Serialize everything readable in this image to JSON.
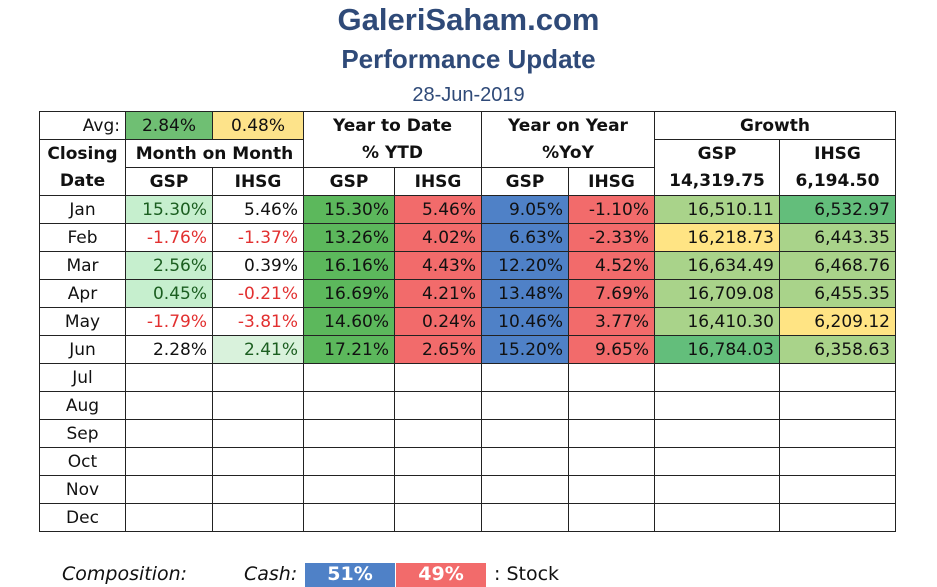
{
  "header": {
    "site": "GaleriSaham.com",
    "subtitle": "Performance Update",
    "date": "28-Jun-2019"
  },
  "avg": {
    "label": "Avg:",
    "gsp": "2.84%",
    "ihsg": "0.48%"
  },
  "groups": {
    "ytd": "Year to Date",
    "yoy": "Year on Year",
    "growth": "Growth"
  },
  "labels": {
    "closing": "Closing",
    "date": "Date",
    "mom": "Month on Month",
    "ytd_pct": "% YTD",
    "yoy_pct": "%YoY",
    "gsp": "GSP",
    "ihsg": "IHSG"
  },
  "base": {
    "gsp": "14,319.75",
    "ihsg": "6,194.50"
  },
  "rows": [
    {
      "month": "Jan",
      "mom_gsp": "15.30%",
      "mom_ihsg": "5.46%",
      "ytd_gsp": "15.30%",
      "ytd_ihsg": "5.46%",
      "yoy_gsp": "9.05%",
      "yoy_ihsg": "-1.10%",
      "gr_gsp": "16,510.11",
      "gr_ihsg": "6,532.97"
    },
    {
      "month": "Feb",
      "mom_gsp": "-1.76%",
      "mom_ihsg": "-1.37%",
      "ytd_gsp": "13.26%",
      "ytd_ihsg": "4.02%",
      "yoy_gsp": "6.63%",
      "yoy_ihsg": "-2.33%",
      "gr_gsp": "16,218.73",
      "gr_ihsg": "6,443.35"
    },
    {
      "month": "Mar",
      "mom_gsp": "2.56%",
      "mom_ihsg": "0.39%",
      "ytd_gsp": "16.16%",
      "ytd_ihsg": "4.43%",
      "yoy_gsp": "12.20%",
      "yoy_ihsg": "4.52%",
      "gr_gsp": "16,634.49",
      "gr_ihsg": "6,468.76"
    },
    {
      "month": "Apr",
      "mom_gsp": "0.45%",
      "mom_ihsg": "-0.21%",
      "ytd_gsp": "16.69%",
      "ytd_ihsg": "4.21%",
      "yoy_gsp": "13.48%",
      "yoy_ihsg": "7.69%",
      "gr_gsp": "16,709.08",
      "gr_ihsg": "6,455.35"
    },
    {
      "month": "May",
      "mom_gsp": "-1.79%",
      "mom_ihsg": "-3.81%",
      "ytd_gsp": "14.60%",
      "ytd_ihsg": "0.24%",
      "yoy_gsp": "10.46%",
      "yoy_ihsg": "3.77%",
      "gr_gsp": "16,410.30",
      "gr_ihsg": "6,209.12"
    },
    {
      "month": "Jun",
      "mom_gsp": "2.28%",
      "mom_ihsg": "2.41%",
      "ytd_gsp": "17.21%",
      "ytd_ihsg": "2.65%",
      "yoy_gsp": "15.20%",
      "yoy_ihsg": "9.65%",
      "gr_gsp": "16,784.03",
      "gr_ihsg": "6,358.63"
    },
    {
      "month": "Jul"
    },
    {
      "month": "Aug"
    },
    {
      "month": "Sep"
    },
    {
      "month": "Oct"
    },
    {
      "month": "Nov"
    },
    {
      "month": "Dec"
    }
  ],
  "colors": {
    "avg_gsp": "#6fbf73",
    "avg_ihsg": "#fde38a",
    "mom_pos": "#c6efce",
    "mom_strong": "#d9f2dc",
    "ytd_gsp": "#5cb85c",
    "ytd_ihsg": "#f26b6b",
    "yoy_gsp": "#4f81c7",
    "yoy_ihsg": "#f26b6b",
    "gr_high": "#63be7b",
    "gr_mid": "#a9d38a",
    "gr_low": "#ffe484"
  },
  "composition": {
    "label": "Composition:",
    "cash_label": "Cash:",
    "cash": "51%",
    "stock": "49%",
    "stock_label": ": Stock"
  }
}
